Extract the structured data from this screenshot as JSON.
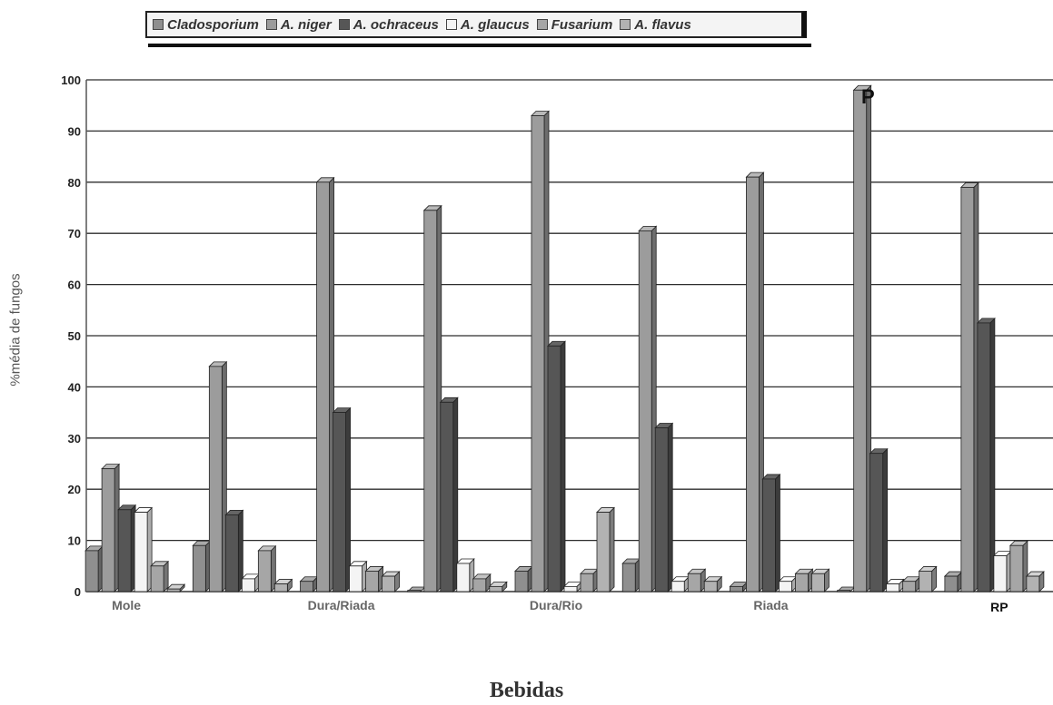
{
  "chart_data": {
    "type": "bar",
    "title": "",
    "xlabel": "Bebidas",
    "ylabel": "%média de fungos",
    "ylim": [
      0,
      100
    ],
    "yticks": [
      "0",
      "10",
      "20",
      "30",
      "40",
      "50",
      "60",
      "70",
      "80",
      "90",
      "100"
    ],
    "grid": true,
    "legend_position": "top",
    "categories": [
      "Mole",
      "",
      "Dura/Riada",
      "",
      "Dura/Rio",
      "",
      "Riada",
      "",
      "RP"
    ],
    "annotations": [
      {
        "text": "P"
      }
    ],
    "series": [
      {
        "name": "Cladosporium",
        "color": "#8f8f8f",
        "values": [
          8,
          9,
          2,
          0,
          4,
          5.5,
          1,
          0,
          3
        ]
      },
      {
        "name": "A. niger",
        "color": "#9c9c9c",
        "values": [
          24,
          44,
          80,
          74.5,
          93,
          70.5,
          81,
          98,
          79
        ]
      },
      {
        "name": "A. ochraceus",
        "color": "#565656",
        "values": [
          16,
          15,
          35,
          37,
          48,
          32,
          22,
          27,
          52.5
        ]
      },
      {
        "name": "A. glaucus",
        "color": "#f4f4f4",
        "values": [
          15.5,
          2.5,
          5,
          5.5,
          1,
          2,
          2,
          1.5,
          7
        ]
      },
      {
        "name": "Fusarium",
        "color": "#a6a6a6",
        "values": [
          5,
          8,
          4,
          2.5,
          3.5,
          3.5,
          3.5,
          2,
          9
        ]
      },
      {
        "name": "A. flavus",
        "color": "#b2b2b2",
        "values": [
          0.5,
          1.5,
          3,
          1,
          15.5,
          2,
          3.5,
          4,
          3
        ]
      }
    ]
  }
}
